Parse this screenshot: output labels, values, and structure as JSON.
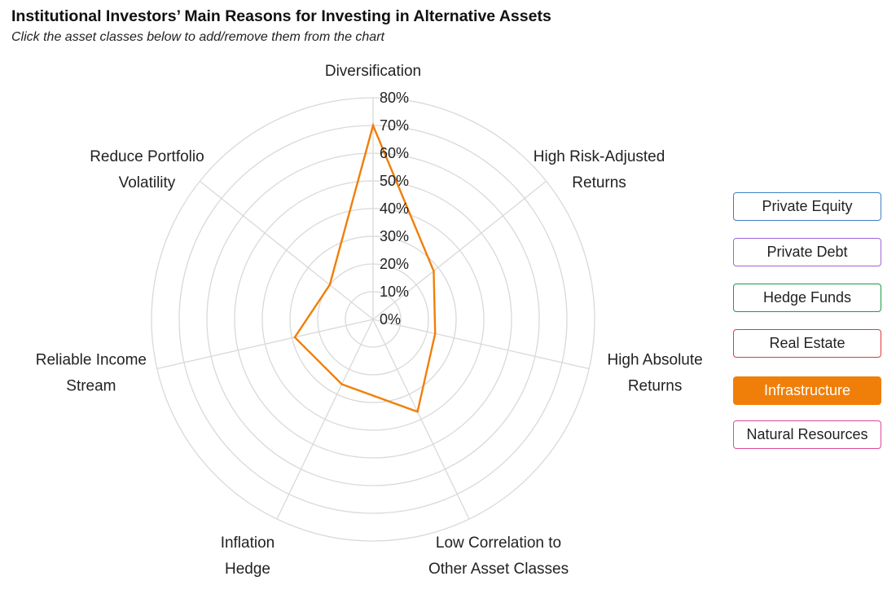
{
  "header": {
    "title": "Institutional Investors’ Main Reasons for Investing in Alternative Assets",
    "subtitle": "Click the asset classes below to add/remove them from the chart"
  },
  "chart_data": {
    "type": "radar",
    "title": "Institutional Investors’ Main Reasons for Investing in Alternative Assets",
    "categories": [
      [
        "Diversification"
      ],
      [
        "High Risk-Adjusted",
        "Returns"
      ],
      [
        "High Absolute",
        "Returns"
      ],
      [
        "Low Correlation to",
        "Other Asset Classes"
      ],
      [
        "Inflation",
        "Hedge"
      ],
      [
        "Reliable Income",
        "Stream"
      ],
      [
        "Reduce Portfolio",
        "Volatility"
      ]
    ],
    "radial_ticks": [
      "0%",
      "10%",
      "20%",
      "30%",
      "40%",
      "50%",
      "60%",
      "70%",
      "80%"
    ],
    "rmax": 80,
    "series": [
      {
        "name": "Infrastructure",
        "color": "#f07f09",
        "visible": true,
        "values": [
          70,
          28,
          23,
          37,
          26,
          29,
          20
        ]
      }
    ],
    "grid_color": "#d9d9d9"
  },
  "legend": [
    {
      "label": "Private Equity",
      "color": "#3f7fc2",
      "active": false
    },
    {
      "label": "Private Debt",
      "color": "#a064d8",
      "active": false
    },
    {
      "label": "Hedge Funds",
      "color": "#1e9c45",
      "active": false
    },
    {
      "label": "Real Estate",
      "color": "#dd3b3b",
      "active": false
    },
    {
      "label": "Infrastructure",
      "color": "#f07f09",
      "active": true
    },
    {
      "label": "Natural Resources",
      "color": "#e0479e",
      "active": false
    }
  ]
}
